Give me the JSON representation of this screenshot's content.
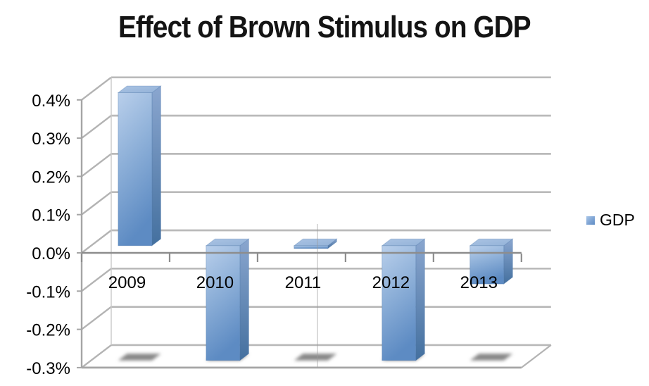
{
  "title": "Effect of Brown Stimulus on GDP",
  "legend": {
    "label": "GDP",
    "swatch_color_top": "#aac7e8",
    "swatch_color_bottom": "#5e8cc4"
  },
  "chart_data": {
    "type": "bar",
    "projection": "3d",
    "title": "Effect of Brown Stimulus on GDP",
    "categories": [
      "2009",
      "2010",
      "2011",
      "2012",
      "2013"
    ],
    "series": [
      {
        "name": "GDP",
        "values": [
          0.4,
          -0.3,
          0.0,
          -0.3,
          -0.1
        ]
      }
    ],
    "value_unit": "%",
    "xlabel": "",
    "ylabel": "",
    "ylim": [
      -0.3,
      0.4
    ],
    "ytick_step": 0.1,
    "ytick_labels": [
      "0.4%",
      "0.3%",
      "0.2%",
      "0.1%",
      "0.0%",
      "-0.1%",
      "-0.2%",
      "-0.3%"
    ],
    "grid": true,
    "legend_position": "right",
    "colors": {
      "bar_front_top": "#b9cfeb",
      "bar_front_mid": "#8fb1d9",
      "bar_front_bottom": "#5d8bc3",
      "bar_side_top": "#8aa6cf",
      "bar_side_bottom": "#44709f",
      "bar_top_light": "#aac3e3",
      "bar_top_dark": "#93b2d8",
      "bar_edge": "#4a76a8",
      "gridline": "#bababa",
      "wall_edge": "#a5a5a5",
      "axis_line": "#8d8d8d",
      "shadow": "#828282",
      "text": "#000000"
    }
  }
}
